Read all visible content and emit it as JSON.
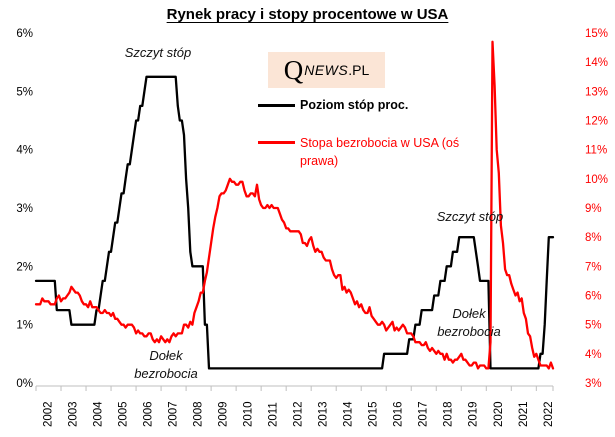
{
  "logo": {
    "q": "Q",
    "news": "NEWS",
    "pl": ".PL"
  },
  "colors": {
    "rate_line": "#000000",
    "unemployment_line": "#ff0000",
    "right_axis_text": "#ff0000",
    "axis_line": "#bfbfbf",
    "logo_background": "#fbe5d6"
  },
  "chart_data": {
    "type": "line",
    "title": "Rynek pracy i stopy procentowe w USA",
    "xlabel": "",
    "frequency": "monthly",
    "x_start": "2002-01",
    "x_end": "2022-09",
    "grid": false,
    "legend_position": "upper-middle",
    "x_tick_labels": [
      "2002",
      "2003",
      "2004",
      "2005",
      "2006",
      "2007",
      "2008",
      "2009",
      "2010",
      "2011",
      "2012",
      "2013",
      "2014",
      "2015",
      "2016",
      "2017",
      "2018",
      "2019",
      "2020",
      "2021",
      "2022"
    ],
    "left_axis": {
      "name": "Poziom stóp procentowych",
      "min": 0,
      "max": 6,
      "tick_labels": [
        "0%",
        "1%",
        "2%",
        "3%",
        "4%",
        "5%",
        "6%"
      ]
    },
    "right_axis": {
      "name": "Stopa bezrobocia",
      "min": 3,
      "max": 15,
      "tick_labels": [
        "3%",
        "4%",
        "5%",
        "6%",
        "7%",
        "8%",
        "9%",
        "10%",
        "11%",
        "12%",
        "13%",
        "14%",
        "15%"
      ]
    },
    "annotations": [
      {
        "text": "Szczyt stóp",
        "anchor": "2006-2007 rate peak 5.25%"
      },
      {
        "text": "Dołek bezrobocia",
        "anchor": "2007 unemployment low ~4.4%"
      },
      {
        "text": "Szczyt stóp",
        "anchor": "2019 rate peak 2.5%"
      },
      {
        "text": "Dołek bezrobocia",
        "anchor": "2019-2020 unemployment low 3.5%"
      }
    ],
    "series": [
      {
        "id": "rate-line",
        "name": "Poziom stóp proc.",
        "axis": "left",
        "color": "#000000",
        "values": [
          1.75,
          1.75,
          1.75,
          1.75,
          1.75,
          1.75,
          1.75,
          1.75,
          1.75,
          1.75,
          1.25,
          1.25,
          1.25,
          1.25,
          1.25,
          1.25,
          1.25,
          1.0,
          1.0,
          1.0,
          1.0,
          1.0,
          1.0,
          1.0,
          1.0,
          1.0,
          1.0,
          1.0,
          1.0,
          1.25,
          1.25,
          1.5,
          1.75,
          1.75,
          2.0,
          2.25,
          2.25,
          2.5,
          2.75,
          2.75,
          3.0,
          3.25,
          3.25,
          3.5,
          3.75,
          3.75,
          4.0,
          4.25,
          4.5,
          4.5,
          4.75,
          4.75,
          5.0,
          5.25,
          5.25,
          5.25,
          5.25,
          5.25,
          5.25,
          5.25,
          5.25,
          5.25,
          5.25,
          5.25,
          5.25,
          5.25,
          5.25,
          5.25,
          4.75,
          4.5,
          4.5,
          4.25,
          3.5,
          3.0,
          2.25,
          2.0,
          2.0,
          2.0,
          2.0,
          2.0,
          2.0,
          1.0,
          1.0,
          0.25,
          0.25,
          0.25,
          0.25,
          0.25,
          0.25,
          0.25,
          0.25,
          0.25,
          0.25,
          0.25,
          0.25,
          0.25,
          0.25,
          0.25,
          0.25,
          0.25,
          0.25,
          0.25,
          0.25,
          0.25,
          0.25,
          0.25,
          0.25,
          0.25,
          0.25,
          0.25,
          0.25,
          0.25,
          0.25,
          0.25,
          0.25,
          0.25,
          0.25,
          0.25,
          0.25,
          0.25,
          0.25,
          0.25,
          0.25,
          0.25,
          0.25,
          0.25,
          0.25,
          0.25,
          0.25,
          0.25,
          0.25,
          0.25,
          0.25,
          0.25,
          0.25,
          0.25,
          0.25,
          0.25,
          0.25,
          0.25,
          0.25,
          0.25,
          0.25,
          0.25,
          0.25,
          0.25,
          0.25,
          0.25,
          0.25,
          0.25,
          0.25,
          0.25,
          0.25,
          0.25,
          0.25,
          0.25,
          0.25,
          0.25,
          0.25,
          0.25,
          0.25,
          0.25,
          0.25,
          0.25,
          0.25,
          0.25,
          0.25,
          0.5,
          0.5,
          0.5,
          0.5,
          0.5,
          0.5,
          0.5,
          0.5,
          0.5,
          0.5,
          0.5,
          0.5,
          0.75,
          0.75,
          0.75,
          1.0,
          1.0,
          1.0,
          1.25,
          1.25,
          1.25,
          1.25,
          1.25,
          1.25,
          1.5,
          1.5,
          1.5,
          1.75,
          1.75,
          1.75,
          2.0,
          2.0,
          2.0,
          2.25,
          2.25,
          2.25,
          2.5,
          2.5,
          2.5,
          2.5,
          2.5,
          2.5,
          2.5,
          2.5,
          2.25,
          2.0,
          1.75,
          1.75,
          1.75,
          1.75,
          1.75,
          0.25,
          0.25,
          0.25,
          0.25,
          0.25,
          0.25,
          0.25,
          0.25,
          0.25,
          0.25,
          0.25,
          0.25,
          0.25,
          0.25,
          0.25,
          0.25,
          0.25,
          0.25,
          0.25,
          0.25,
          0.25,
          0.25,
          0.25,
          0.25,
          0.5,
          0.5,
          1.0,
          1.75,
          2.5,
          2.5,
          2.5
        ]
      },
      {
        "id": "unemployment-line",
        "name": "Stopa bezrobocia w USA (oś prawa)",
        "axis": "right",
        "color": "#ff0000",
        "values": [
          5.7,
          5.7,
          5.7,
          5.9,
          5.8,
          5.8,
          5.8,
          5.7,
          5.7,
          5.7,
          5.9,
          6.0,
          5.8,
          5.9,
          5.9,
          6.0,
          6.1,
          6.3,
          6.2,
          6.1,
          6.1,
          6.0,
          5.8,
          5.7,
          5.7,
          5.6,
          5.8,
          5.6,
          5.6,
          5.6,
          5.5,
          5.4,
          5.4,
          5.5,
          5.4,
          5.4,
          5.3,
          5.4,
          5.2,
          5.2,
          5.1,
          5.0,
          5.0,
          4.9,
          5.0,
          5.0,
          5.0,
          4.9,
          4.7,
          4.8,
          4.7,
          4.7,
          4.6,
          4.6,
          4.7,
          4.7,
          4.5,
          4.4,
          4.5,
          4.4,
          4.6,
          4.5,
          4.4,
          4.5,
          4.4,
          4.6,
          4.7,
          4.6,
          4.7,
          4.7,
          4.7,
          5.0,
          5.0,
          4.9,
          5.1,
          5.0,
          5.4,
          5.6,
          5.8,
          6.1,
          6.1,
          6.5,
          6.8,
          7.3,
          7.8,
          8.3,
          8.7,
          9.0,
          9.4,
          9.5,
          9.5,
          9.6,
          9.8,
          10.0,
          9.9,
          9.9,
          9.8,
          9.8,
          9.9,
          9.9,
          9.6,
          9.4,
          9.4,
          9.5,
          9.5,
          9.4,
          9.8,
          9.3,
          9.1,
          9.0,
          9.0,
          9.1,
          9.0,
          9.1,
          9.0,
          9.0,
          9.0,
          8.8,
          8.6,
          8.5,
          8.3,
          8.3,
          8.2,
          8.2,
          8.2,
          8.2,
          8.2,
          8.1,
          7.8,
          7.8,
          7.7,
          7.9,
          8.0,
          7.7,
          7.5,
          7.6,
          7.5,
          7.5,
          7.3,
          7.2,
          7.2,
          7.2,
          6.9,
          6.7,
          6.6,
          6.7,
          6.7,
          6.2,
          6.3,
          6.1,
          6.2,
          6.1,
          5.9,
          5.7,
          5.8,
          5.6,
          5.7,
          5.5,
          5.4,
          5.4,
          5.6,
          5.3,
          5.2,
          5.1,
          5.0,
          5.0,
          5.1,
          5.0,
          4.8,
          4.9,
          5.0,
          5.1,
          4.8,
          4.9,
          4.8,
          4.9,
          5.0,
          4.9,
          4.7,
          4.7,
          4.7,
          4.6,
          4.4,
          4.4,
          4.4,
          4.3,
          4.3,
          4.4,
          4.2,
          4.1,
          4.2,
          4.1,
          4.0,
          4.1,
          4.0,
          4.0,
          3.8,
          4.0,
          3.8,
          3.8,
          3.7,
          3.8,
          3.8,
          3.9,
          4.0,
          3.8,
          3.8,
          3.7,
          3.6,
          3.6,
          3.7,
          3.7,
          3.5,
          3.6,
          3.6,
          3.6,
          3.5,
          3.5,
          4.4,
          14.7,
          13.2,
          11.0,
          10.2,
          8.4,
          7.8,
          6.9,
          6.7,
          6.7,
          6.4,
          6.2,
          6.0,
          6.1,
          5.8,
          5.9,
          5.4,
          5.2,
          4.7,
          4.6,
          4.2,
          3.9,
          4.0,
          3.8,
          3.6,
          3.6,
          3.6,
          3.6,
          3.5,
          3.7,
          3.5
        ]
      }
    ]
  }
}
